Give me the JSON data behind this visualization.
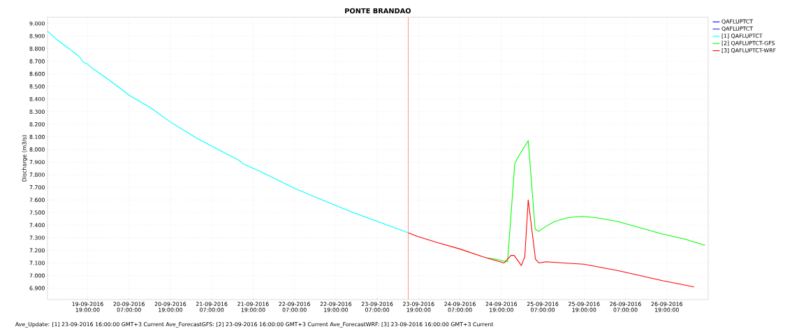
{
  "chart_data": {
    "type": "line",
    "title": "PONTE BRANDAO",
    "ylabel": "Discharge (m3/s)",
    "annotations": [
      "Ave_Update: [1] 23-09-2016 16:00:00 GMT+3 Current Ave_ForecastGFS: [2] 23-09-2016 16:00:00 GMT+3 Current Ave_ForecastWRF: [3] 23-09-2016 16:00:00 GMT+3 Current"
    ],
    "xlim": [
      "2016-09-19T07:20",
      "2016-09-27T07:00"
    ],
    "xticks": [
      {
        "value": "2016-09-19T19:00",
        "label": "19-09-2016 19:00:00"
      },
      {
        "value": "2016-09-20T07:00",
        "label": "20-09-2016 07:00:00"
      },
      {
        "value": "2016-09-20T19:00",
        "label": "20-09-2016 19:00:00"
      },
      {
        "value": "2016-09-21T07:00",
        "label": "21-09-2016 07:00:00"
      },
      {
        "value": "2016-09-21T19:00",
        "label": "21-09-2016 19:00:00"
      },
      {
        "value": "2016-09-22T07:00",
        "label": "22-09-2016 07:00:00"
      },
      {
        "value": "2016-09-22T19:00",
        "label": "22-09-2016 19:00:00"
      },
      {
        "value": "2016-09-23T07:00",
        "label": "23-09-2016 07:00:00"
      },
      {
        "value": "2016-09-23T19:00",
        "label": "23-09-2016 19:00:00"
      },
      {
        "value": "2016-09-24T07:00",
        "label": "24-09-2016 07:00:00"
      },
      {
        "value": "2016-09-24T19:00",
        "label": "24-09-2016 19:00:00"
      },
      {
        "value": "2016-09-25T07:00",
        "label": "25-09-2016 07:00:00"
      },
      {
        "value": "2016-09-25T19:00",
        "label": "25-09-2016 19:00:00"
      },
      {
        "value": "2016-09-26T07:00",
        "label": "26-09-2016 07:00:00"
      },
      {
        "value": "2016-09-26T19:00",
        "label": "26-09-2016 19:00:00"
      }
    ],
    "ylim": [
      6.81,
      9.05
    ],
    "yticks": [
      {
        "value": 6.9,
        "label": "6.900"
      },
      {
        "value": 7.0,
        "label": "7.000"
      },
      {
        "value": 7.1,
        "label": "7.100"
      },
      {
        "value": 7.2,
        "label": "7.200"
      },
      {
        "value": 7.3,
        "label": "7.300"
      },
      {
        "value": 7.4,
        "label": "7.400"
      },
      {
        "value": 7.5,
        "label": "7.500"
      },
      {
        "value": 7.6,
        "label": "7.600"
      },
      {
        "value": 7.7,
        "label": "7.700"
      },
      {
        "value": 7.8,
        "label": "7.800"
      },
      {
        "value": 7.9,
        "label": "7.900"
      },
      {
        "value": 8.0,
        "label": "8.000"
      },
      {
        "value": 8.1,
        "label": "8.100"
      },
      {
        "value": 8.2,
        "label": "8.200"
      },
      {
        "value": 8.3,
        "label": "8.300"
      },
      {
        "value": 8.4,
        "label": "8.400"
      },
      {
        "value": 8.5,
        "label": "8.500"
      },
      {
        "value": 8.6,
        "label": "8.600"
      },
      {
        "value": 8.7,
        "label": "8.700"
      },
      {
        "value": 8.8,
        "label": "8.800"
      },
      {
        "value": 8.9,
        "label": "8.900"
      },
      {
        "value": 9.0,
        "label": "9.000"
      }
    ],
    "grid": true,
    "legend": "top right",
    "line_style": "solid",
    "ref_lines": [
      {
        "axis": "x",
        "value": "2016-09-23T16:00",
        "color": "#ff8080"
      }
    ],
    "series": [
      {
        "name": "QAFLUPTCT",
        "color": "#0000ff"
      },
      {
        "name": "QAFLUPTCT",
        "color": "#2020ff"
      },
      {
        "name": "[1] QAFLUPTCT",
        "color": "#00ffff",
        "x": [
          "2016-09-19T07:20",
          "2016-09-19T10:08",
          "2016-09-19T13:38",
          "2016-09-19T16:25",
          "2016-09-19T17:49",
          "2016-09-19T18:52",
          "2016-09-19T20:36",
          "2016-09-20T00:48",
          "2016-09-20T07:06",
          "2016-09-20T13:21",
          "2016-09-20T18:54",
          "2016-09-21T02:36",
          "2016-09-21T07:30",
          "2016-09-21T15:12",
          "2016-09-21T15:54",
          "2016-09-21T21:30",
          "2016-09-22T07:12",
          "2016-09-22T14:12",
          "2016-09-23T00:00",
          "2016-09-23T09:00",
          "2016-09-23T16:00"
        ],
        "values": [
          8.94,
          8.87,
          8.8,
          8.74,
          8.69,
          8.68,
          8.64,
          8.56,
          8.43,
          8.33,
          8.22,
          8.09,
          8.02,
          7.91,
          7.89,
          7.82,
          7.69,
          7.61,
          7.5,
          7.41,
          7.34
        ]
      },
      {
        "name": "[2] QAFLUPTCT-GFS",
        "color": "#00ff00",
        "x": [
          "2016-09-24T14:54",
          "2016-09-24T17:12",
          "2016-09-24T20:48",
          "2016-09-24T22:54",
          "2016-09-25T00:06",
          "2016-09-25T02:48",
          "2016-09-25T04:48",
          "2016-09-25T05:48",
          "2016-09-25T07:54",
          "2016-09-25T10:30",
          "2016-09-25T14:24",
          "2016-09-25T18:18",
          "2016-09-25T22:12",
          "2016-09-26T04:42",
          "2016-09-26T11:12",
          "2016-09-26T17:42",
          "2016-09-27T00:12",
          "2016-09-27T06:06"
        ],
        "values": [
          7.14,
          7.13,
          7.11,
          7.89,
          7.95,
          8.07,
          7.37,
          7.35,
          7.39,
          7.43,
          7.46,
          7.47,
          7.46,
          7.43,
          7.38,
          7.33,
          7.29,
          7.24
        ]
      },
      {
        "name": "[3] QAFLUPTCT-WRF",
        "color": "#ff0000",
        "x": [
          "2016-09-23T16:00",
          "2016-09-23T18:42",
          "2016-09-24T00:36",
          "2016-09-24T07:06",
          "2016-09-24T13:36",
          "2016-09-24T19:48",
          "2016-09-24T21:48",
          "2016-09-24T22:42",
          "2016-09-25T00:48",
          "2016-09-25T01:48",
          "2016-09-25T02:48",
          "2016-09-25T04:54",
          "2016-09-25T05:54",
          "2016-09-25T07:54",
          "2016-09-25T13:06",
          "2016-09-25T18:54",
          "2016-09-26T04:42",
          "2016-09-26T11:12",
          "2016-09-26T17:42",
          "2016-09-27T02:54"
        ],
        "values": [
          7.34,
          7.31,
          7.26,
          7.21,
          7.15,
          7.1,
          7.16,
          7.16,
          7.08,
          7.15,
          7.6,
          7.13,
          7.1,
          7.11,
          7.1,
          7.09,
          7.04,
          7.0,
          6.96,
          6.91
        ]
      }
    ]
  }
}
